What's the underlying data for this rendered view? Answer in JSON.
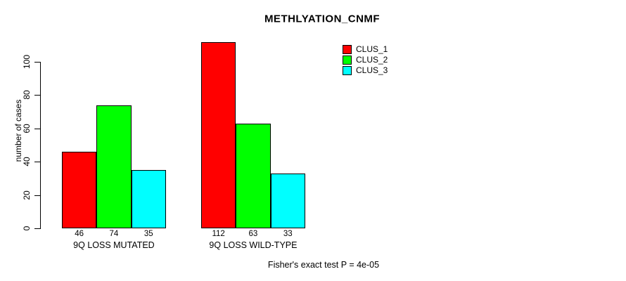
{
  "chart_data": {
    "type": "bar",
    "title": "METHLYATION_CNMF",
    "categories": [
      "9Q LOSS MUTATED",
      "9Q LOSS WILD-TYPE"
    ],
    "series": [
      {
        "name": "CLUS_1",
        "color": "#ff0000",
        "values": [
          46,
          112
        ]
      },
      {
        "name": "CLUS_2",
        "color": "#00ff00",
        "values": [
          74,
          63
        ]
      },
      {
        "name": "CLUS_3",
        "color": "#00ffff",
        "values": [
          35,
          33
        ]
      }
    ],
    "xlabel": "",
    "ylabel": "number of cases",
    "yticks": [
      0,
      20,
      40,
      60,
      80,
      100
    ],
    "ylim": [
      0,
      117
    ],
    "grid": false,
    "legend_position": "top-right",
    "show_values_below_bars": true,
    "annotation": "Fisher's exact test P = 4e-05",
    "colors": {
      "bar_border": "#000000",
      "text": "#000000",
      "background": "#ffffff"
    }
  }
}
